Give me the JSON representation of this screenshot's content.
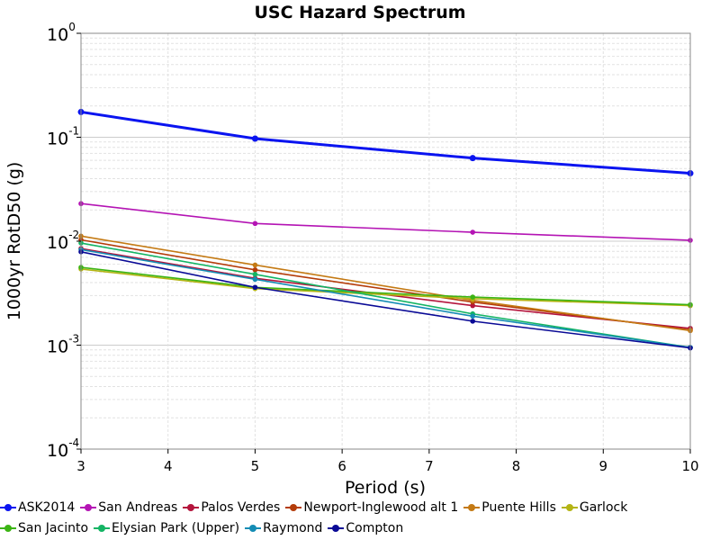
{
  "chart_data": {
    "type": "line",
    "title": "USC Hazard Spectrum",
    "xlabel": "Period (s)",
    "ylabel": "1000yr RotD50 (g)",
    "xlim": [
      3,
      10
    ],
    "ylim": [
      0.0001,
      1
    ],
    "yscale": "log",
    "grid": true,
    "legend_position": "bottom",
    "x_ticks": [
      "3",
      "4",
      "5",
      "6",
      "7",
      "8",
      "9",
      "10"
    ],
    "y_ticks": [
      {
        "base": "10",
        "exp": "0"
      },
      {
        "base": "10",
        "exp": "-1"
      },
      {
        "base": "10",
        "exp": "-2"
      },
      {
        "base": "10",
        "exp": "-3"
      },
      {
        "base": "10",
        "exp": "-4"
      }
    ],
    "x": [
      3,
      5,
      7.5,
      10
    ],
    "series": [
      {
        "name": "ASK2014",
        "color": "#0a14f0",
        "width": 3,
        "values": [
          0.175,
          0.097,
          0.063,
          0.045
        ]
      },
      {
        "name": "San Andreas",
        "color": "#b414b4",
        "width": 1.6,
        "values": [
          0.023,
          0.0148,
          0.0122,
          0.0102
        ]
      },
      {
        "name": "Palos Verdes",
        "color": "#b4143c",
        "width": 1.6,
        "values": [
          0.0085,
          0.0044,
          0.0024,
          0.00145
        ]
      },
      {
        "name": "Newport-Inglewood alt 1",
        "color": "#b43c0a",
        "width": 1.6,
        "values": [
          0.0103,
          0.0053,
          0.0026,
          0.0014
        ]
      },
      {
        "name": "Puente Hills",
        "color": "#c47a14",
        "width": 1.6,
        "values": [
          0.0112,
          0.0059,
          0.0027,
          0.00138
        ]
      },
      {
        "name": "Garlock",
        "color": "#b4b414",
        "width": 1.6,
        "values": [
          0.0054,
          0.0035,
          0.0028,
          0.0024
        ]
      },
      {
        "name": "San Jacinto",
        "color": "#3cb414",
        "width": 1.6,
        "values": [
          0.0056,
          0.0036,
          0.0029,
          0.00245
        ]
      },
      {
        "name": "Elysian Park (Upper)",
        "color": "#14b464",
        "width": 1.6,
        "values": [
          0.0096,
          0.0048,
          0.002,
          0.00095
        ]
      },
      {
        "name": "Raymond",
        "color": "#148cb4",
        "width": 1.6,
        "values": [
          0.0083,
          0.0043,
          0.0019,
          0.00095
        ]
      },
      {
        "name": "Compton",
        "color": "#0a0a96",
        "width": 1.6,
        "values": [
          0.0079,
          0.0036,
          0.0017,
          0.00094
        ]
      }
    ]
  }
}
